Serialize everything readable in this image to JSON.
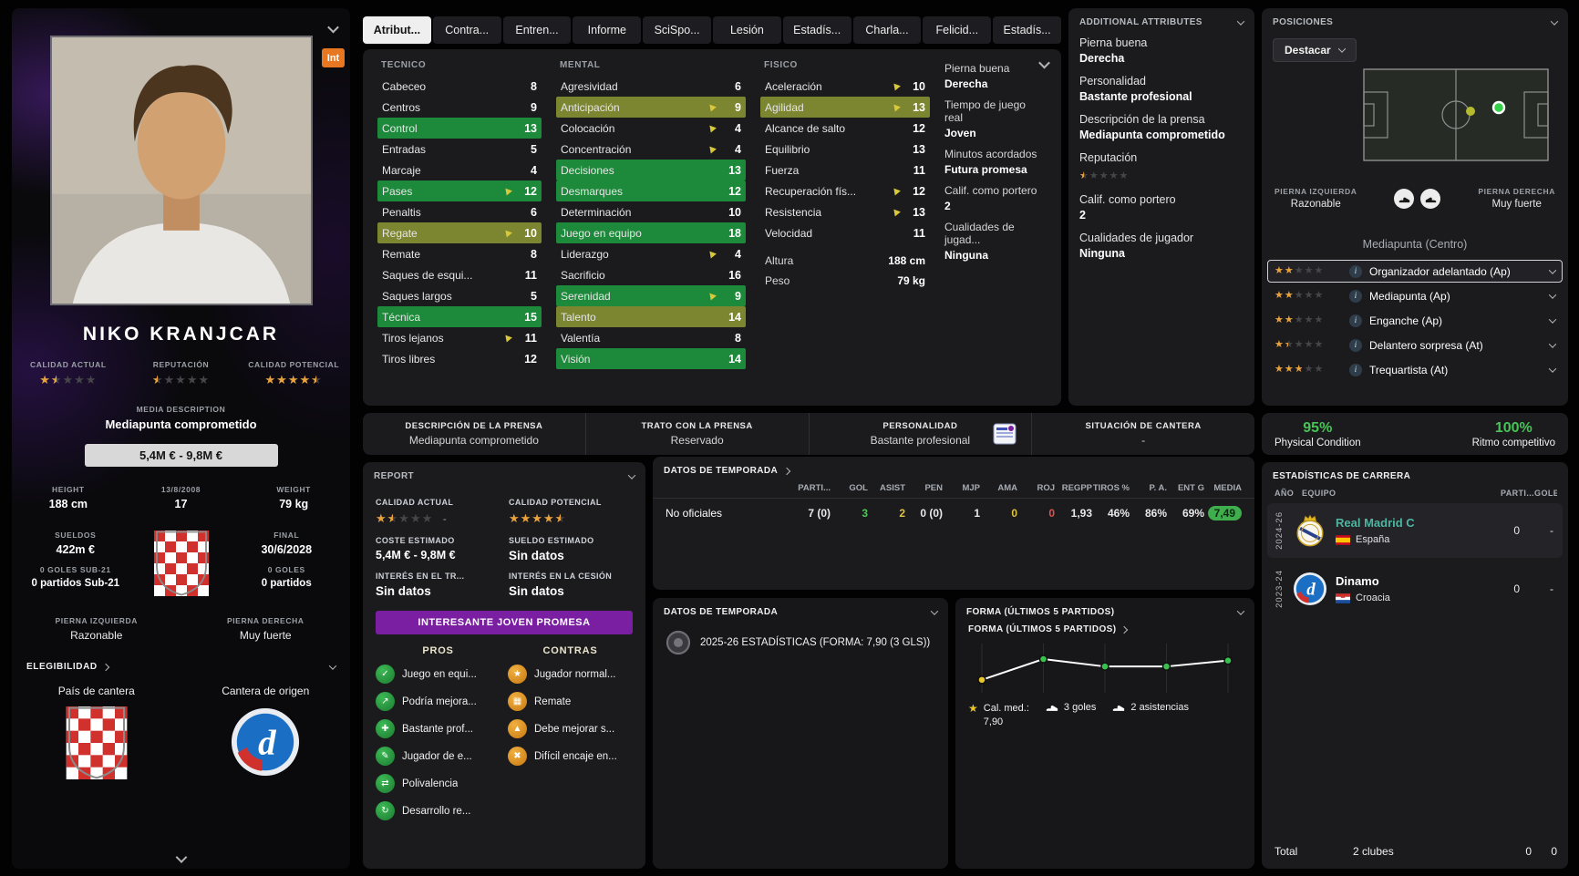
{
  "tabs": [
    {
      "label": "Atribut...",
      "active": true
    },
    {
      "label": "Contra...",
      "active": false
    },
    {
      "label": "Entren...",
      "active": false
    },
    {
      "label": "Informe",
      "active": false
    },
    {
      "label": "SciSpo...",
      "active": false
    },
    {
      "label": "Lesión",
      "active": false
    },
    {
      "label": "Estadís...",
      "active": false
    },
    {
      "label": "Charla...",
      "active": false
    },
    {
      "label": "Felicid...",
      "active": false
    },
    {
      "label": "Estadís...",
      "active": false
    }
  ],
  "player": {
    "int_badge": "Int",
    "name": "NIKO KRANJCAR",
    "calidad_actual_label": "CALIDAD ACTUAL",
    "calidad_actual_stars": 1.5,
    "reputacion_label": "REPUTACIÓN",
    "reputacion_stars": 0.5,
    "calidad_potencial_label": "CALIDAD POTENCIAL",
    "calidad_potencial_stars": 4.5,
    "media_description_label": "MEDIA DESCRIPTION",
    "media_description": "Mediapunta comprometido",
    "value_range": "5,4M € - 9,8M €",
    "height_label": "HEIGHT",
    "height": "188 cm",
    "birthdate": "13/8/2008",
    "age": "17",
    "weight_label": "WEIGHT",
    "weight": "79 kg",
    "sueldos_label": "SUELDOS",
    "sueldos": "422m €",
    "final_label": "FINAL",
    "final_date": "30/6/2028",
    "goles_sub21_label": "0 GOLES SUB-21",
    "partidos_sub21": "0 partidos Sub-21",
    "goles_label": "0 GOLES",
    "partidos": "0 partidos",
    "left_foot_label": "PIERNA IZQUIERDA",
    "left_foot": "Razonable",
    "right_foot_label": "PIERNA DERECHA",
    "right_foot": "Muy fuerte",
    "elegibilidad_label": "ELEGIBILIDAD",
    "pais_cantera_label": "País de cantera",
    "cantera_origen_label": "Cantera de origen"
  },
  "attributes": {
    "tecnico_title": "TECNICO",
    "mental_title": "MENTAL",
    "fisico_title": "FISICO",
    "tecnico": [
      {
        "name": "Cabeceo",
        "value": "8",
        "hl": "",
        "arrow": false
      },
      {
        "name": "Centros",
        "value": "9",
        "hl": "",
        "arrow": false
      },
      {
        "name": "Control",
        "value": "13",
        "hl": "hl-green",
        "arrow": false
      },
      {
        "name": "Entradas",
        "value": "5",
        "hl": "",
        "arrow": false
      },
      {
        "name": "Marcaje",
        "value": "4",
        "hl": "",
        "arrow": false
      },
      {
        "name": "Pases",
        "value": "12",
        "hl": "hl-green",
        "arrow": true
      },
      {
        "name": "Penaltis",
        "value": "6",
        "hl": "",
        "arrow": false
      },
      {
        "name": "Regate",
        "value": "10",
        "hl": "hl-olive",
        "arrow": true
      },
      {
        "name": "Remate",
        "value": "8",
        "hl": "",
        "arrow": false
      },
      {
        "name": "Saques de esqui...",
        "value": "11",
        "hl": "",
        "arrow": false
      },
      {
        "name": "Saques largos",
        "value": "5",
        "hl": "",
        "arrow": false
      },
      {
        "name": "Técnica",
        "value": "15",
        "hl": "hl-green",
        "arrow": false
      },
      {
        "name": "Tiros lejanos",
        "value": "11",
        "hl": "",
        "arrow": true
      },
      {
        "name": "Tiros libres",
        "value": "12",
        "hl": "",
        "arrow": false
      }
    ],
    "mental": [
      {
        "name": "Agresividad",
        "value": "6",
        "hl": "",
        "arrow": false
      },
      {
        "name": "Anticipación",
        "value": "9",
        "hl": "hl-olive",
        "arrow": true
      },
      {
        "name": "Colocación",
        "value": "4",
        "hl": "",
        "arrow": true
      },
      {
        "name": "Concentración",
        "value": "4",
        "hl": "",
        "arrow": true
      },
      {
        "name": "Decisiones",
        "value": "13",
        "hl": "hl-green",
        "arrow": false
      },
      {
        "name": "Desmarques",
        "value": "12",
        "hl": "hl-green",
        "arrow": false
      },
      {
        "name": "Determinación",
        "value": "10",
        "hl": "",
        "arrow": false
      },
      {
        "name": "Juego en equipo",
        "value": "18",
        "hl": "hl-green",
        "arrow": false
      },
      {
        "name": "Liderazgo",
        "value": "4",
        "hl": "",
        "arrow": true
      },
      {
        "name": "Sacrificio",
        "value": "16",
        "hl": "",
        "arrow": false
      },
      {
        "name": "Serenidad",
        "value": "9",
        "hl": "hl-green",
        "arrow": true
      },
      {
        "name": "Talento",
        "value": "14",
        "hl": "hl-olive",
        "arrow": false
      },
      {
        "name": "Valentía",
        "value": "8",
        "hl": "",
        "arrow": false
      },
      {
        "name": "Visión",
        "value": "14",
        "hl": "hl-green",
        "arrow": false
      }
    ],
    "fisico": [
      {
        "name": "Aceleración",
        "value": "10",
        "hl": "",
        "arrow": true
      },
      {
        "name": "Agilidad",
        "value": "13",
        "hl": "hl-olive",
        "arrow": true
      },
      {
        "name": "Alcance de salto",
        "value": "12",
        "hl": "",
        "arrow": false
      },
      {
        "name": "Equilibrio",
        "value": "13",
        "hl": "",
        "arrow": false
      },
      {
        "name": "Fuerza",
        "value": "11",
        "hl": "",
        "arrow": false
      },
      {
        "name": "Recuperación fís...",
        "value": "12",
        "hl": "",
        "arrow": true
      },
      {
        "name": "Resistencia",
        "value": "13",
        "hl": "",
        "arrow": true
      },
      {
        "name": "Velocidad",
        "value": "11",
        "hl": "",
        "arrow": false
      }
    ],
    "altura_label": "Altura",
    "altura": "188 cm",
    "peso_label": "Peso",
    "peso": "79 kg"
  },
  "side_attributes": [
    {
      "label": "Pierna buena",
      "value": "Derecha"
    },
    {
      "label": "Tiempo de juego real",
      "value": "Joven"
    },
    {
      "label": "Minutos acordados",
      "value": "Futura promesa"
    },
    {
      "label": "Calif. como portero",
      "value": "2"
    },
    {
      "label": "Cualidades de jugad...",
      "value": "Ninguna"
    }
  ],
  "additional": {
    "title": "ADDITIONAL ATTRIBUTES",
    "reputation_stars": 0.5,
    "items": [
      {
        "label": "Pierna buena",
        "value": "Derecha"
      },
      {
        "label": "Personalidad",
        "value": "Bastante profesional"
      },
      {
        "label": "Descripción de la prensa",
        "value": "Mediapunta comprometido"
      },
      {
        "label": "Reputación",
        "value": ""
      },
      {
        "label": "Calif. como portero",
        "value": "2"
      },
      {
        "label": "Cualidades de jugador",
        "value": "Ninguna"
      }
    ]
  },
  "positions": {
    "title": "POSICIONES",
    "destacar_label": "Destacar",
    "left_foot_label": "PIERNA IZQUIERDA",
    "left_foot": "Razonable",
    "right_foot_label": "PIERNA DERECHA",
    "right_foot": "Muy fuerte",
    "position_name": "Mediapunta (Centro)",
    "roles": [
      {
        "label": "Organizador adelantado (Ap)",
        "stars": 1.5,
        "selected": true
      },
      {
        "label": "Mediapunta (Ap)",
        "stars": 1.5,
        "selected": false
      },
      {
        "label": "Enganche (Ap)",
        "stars": 1.5,
        "selected": false
      },
      {
        "label": "Delantero sorpresa (At)",
        "stars": 1,
        "selected": false
      },
      {
        "label": "Trequartista (At)",
        "stars": 2,
        "selected": false
      }
    ]
  },
  "condition": {
    "physical_value": "95%",
    "physical_label": "Physical Condition",
    "match_value": "100%",
    "match_label": "Ritmo competitivo"
  },
  "press": {
    "items": [
      {
        "label": "DESCRIPCIÓN DE LA PRENSA",
        "value": "Mediapunta comprometido",
        "icon": false
      },
      {
        "label": "TRATO CON LA PRENSA",
        "value": "Reservado",
        "icon": false
      },
      {
        "label": "PERSONALIDAD",
        "value": "Bastante profesional",
        "icon": true
      },
      {
        "label": "SITUACIÓN DE CANTERA",
        "value": "-",
        "icon": false
      }
    ]
  },
  "report": {
    "title": "REPORT",
    "calidad_actual_label": "CALIDAD ACTUAL",
    "calidad_actual_stars": 1.5,
    "calidad_actual_suffix": "-",
    "calidad_potencial_label": "CALIDAD POTENCIAL",
    "calidad_potencial_stars": 4.5,
    "coste_label": "COSTE ESTIMADO",
    "coste": "5,4M € - 9,8M €",
    "sueldo_label": "SUELDO ESTIMADO",
    "sueldo": "Sin datos",
    "interes_traspaso_label": "INTERÉS EN EL TR...",
    "interes_traspaso": "Sin datos",
    "interes_cesion_label": "INTERÉS EN LA CESIÓN",
    "interes_cesion": "Sin datos",
    "banner": "INTERESANTE JOVEN PROMESA",
    "pros_title": "PROS",
    "cons_title": "CONTRAS",
    "pros": [
      {
        "glyph": "✓",
        "label": "Juego en equi..."
      },
      {
        "glyph": "↗",
        "label": "Podría mejora..."
      },
      {
        "glyph": "✚",
        "label": "Bastante prof..."
      },
      {
        "glyph": "✎",
        "label": "Jugador de e..."
      },
      {
        "glyph": "⇄",
        "label": "Polivalencia"
      },
      {
        "glyph": "↻",
        "label": "Desarrollo re..."
      }
    ],
    "cons": [
      {
        "glyph": "★",
        "label": "Jugador normal..."
      },
      {
        "glyph": "▦",
        "label": "Remate"
      },
      {
        "glyph": "▲",
        "label": "Debe mejorar s..."
      },
      {
        "glyph": "✖",
        "label": "Difícil encaje en..."
      }
    ]
  },
  "season": {
    "title": "DATOS DE TEMPORADA",
    "row_label": "No oficiales",
    "cols": [
      {
        "h": "PARTI...",
        "v": "7 (0)",
        "c": ""
      },
      {
        "h": "GOL",
        "v": "3",
        "c": "c-green"
      },
      {
        "h": "ASIST",
        "v": "2",
        "c": "c-yellow"
      },
      {
        "h": "PEN",
        "v": "0 (0)",
        "c": ""
      },
      {
        "h": "MJP",
        "v": "1",
        "c": ""
      },
      {
        "h": "AMA",
        "v": "0",
        "c": "c-yellow"
      },
      {
        "h": "ROJ",
        "v": "0",
        "c": "c-red"
      },
      {
        "h": "REGPP",
        "v": "1,93",
        "c": ""
      },
      {
        "h": "TIROS %",
        "v": "46%",
        "c": ""
      },
      {
        "h": "P. A.",
        "v": "86%",
        "c": ""
      },
      {
        "h": "ENT G",
        "v": "69%",
        "c": ""
      },
      {
        "h": "MEDIA",
        "v": "7,49",
        "c": "c-badge"
      }
    ]
  },
  "season2": {
    "title": "DATOS DE TEMPORADA",
    "line": "2025-26 ESTADÍSTICAS (FORMA: 7,90 (3 GLS))"
  },
  "forma": {
    "panel_title": "FORMA (ÚLTIMOS 5 PARTIDOS)",
    "link_title": "FORMA (ÚLTIMOS 5 PARTIDOS)",
    "avg_label": "Cal. med.:",
    "avg": "7,90",
    "goals": "3 goles",
    "assists": "2 asistencias"
  },
  "career": {
    "title": "ESTADÍSTICAS DE CARRERA",
    "col_year": "AÑO",
    "col_team": "EQUIPO",
    "col_apps": "PARTI...",
    "col_goals": "GOLES",
    "rows": [
      {
        "year": "2024-26",
        "team": "Real Madrid C",
        "country": "España",
        "apps": "0",
        "goals": "-"
      },
      {
        "year": "2023-24",
        "team": "Dinamo",
        "country": "Croacia",
        "apps": "0",
        "goals": "-"
      }
    ],
    "total_label": "Total",
    "total_clubs": "2 clubes",
    "total_apps": "0",
    "total_goals": "0"
  },
  "chart_data": {
    "type": "line",
    "title": "FORMA (ÚLTIMOS 5 PARTIDOS)",
    "x": [
      1,
      2,
      3,
      4,
      5
    ],
    "values": [
      7.0,
      8.4,
      7.9,
      7.9,
      8.3
    ],
    "average": 7.9,
    "ylim": [
      6.5,
      9.2
    ],
    "first_marker_color": "#e8c62c",
    "marker_color": "#38c14e",
    "line_color": "#ffffff"
  }
}
